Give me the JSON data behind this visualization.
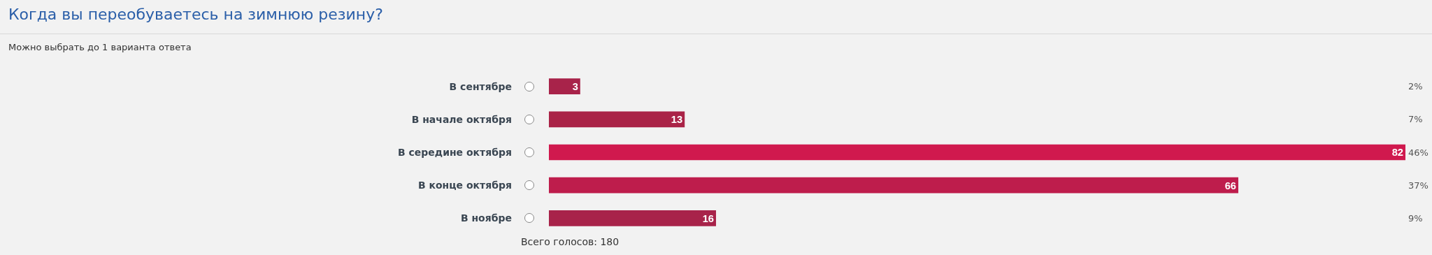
{
  "chart_data": {
    "type": "bar",
    "orientation": "horizontal",
    "title": "Когда вы переобуваетесь на зимнюю резину?",
    "subtitle": "Можно выбрать до 1 варианта ответа",
    "categories": [
      "В сентябре",
      "В начале октября",
      "В середине октября",
      "В конце октября",
      "В ноябре"
    ],
    "values": [
      3,
      13,
      82,
      66,
      16
    ],
    "colors": [
      "#a8234a",
      "#aa2347",
      "#d0194e",
      "#be1d4c",
      "#a8234a"
    ],
    "data_labels": true,
    "xlim": [
      0,
      82
    ],
    "tick_labels": "y",
    "grid": false,
    "annotations": [
      "2%",
      "7%",
      "46%",
      "37%",
      "9%",
      "Всего голосов: 180"
    ]
  }
}
